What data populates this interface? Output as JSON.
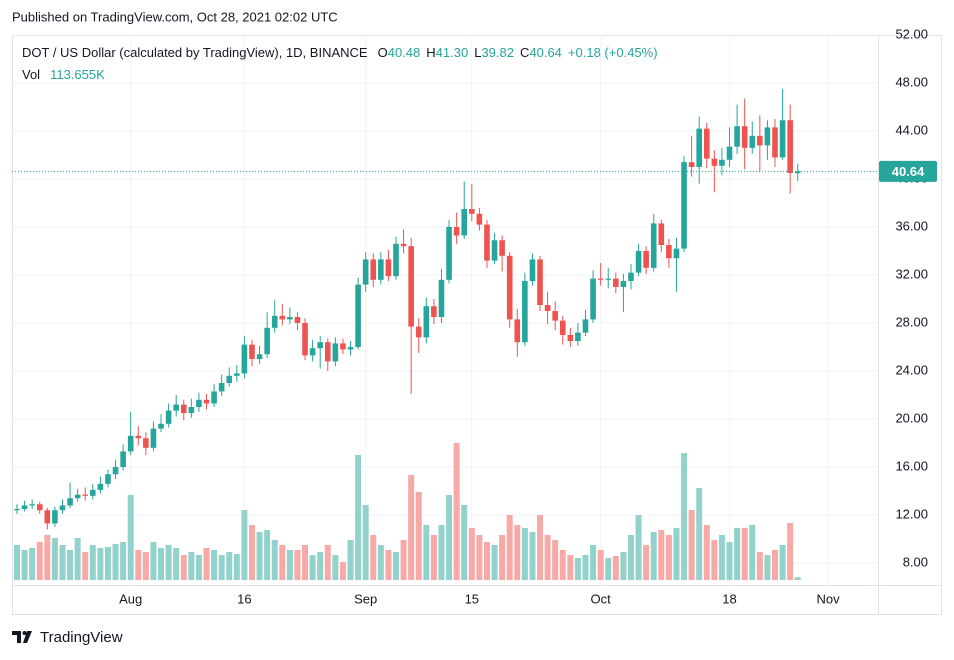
{
  "published": "Published on TradingView.com, Oct 28, 2021 02:02 UTC",
  "brand": "TradingView",
  "chart_data": {
    "type": "candlestick",
    "title": "DOT / US Dollar (calculated by TradingView), 1D, BINANCE",
    "legend_items": [
      {
        "key": "O",
        "value": 40.48
      },
      {
        "key": "H",
        "value": {
          "value": 41.3,
          "label": "41.30"
        }
      },
      {
        "key": "L",
        "value": 39.82
      },
      {
        "key": "C",
        "value": 40.64
      }
    ],
    "change": "+0.18 (+0.45%)",
    "volume_title": "Vol",
    "volume_last": {
      "value": 113655,
      "label": "113.655K"
    },
    "last_price": 40.64,
    "up_color": "#26a69a",
    "down_color": "#ef5350",
    "volume_up_color": "#93d2cc",
    "volume_down_color": "#f7a9a7",
    "grid": true,
    "ylim": [
      6.17,
      52
    ],
    "yticks": [
      {
        "value": 8,
        "label": "8.00"
      },
      {
        "value": 12,
        "label": "12.00"
      },
      {
        "value": 16,
        "label": "16.00"
      },
      {
        "value": 20,
        "label": "20.00"
      },
      {
        "value": 24,
        "label": "24.00"
      },
      {
        "value": 28,
        "label": "28.00"
      },
      {
        "value": 32,
        "label": "32.00"
      },
      {
        "value": 36,
        "label": "36.00"
      },
      {
        "value": 40,
        "label": "40.00"
      },
      {
        "value": 44,
        "label": "44.00"
      },
      {
        "value": 48,
        "label": "48.00"
      },
      {
        "value": 52,
        "label": "52.00"
      }
    ],
    "vlim": [
      0,
      6000000
    ],
    "categories": [
      null,
      null,
      null,
      null,
      null,
      null,
      null,
      null,
      null,
      null,
      null,
      null,
      null,
      null,
      null,
      "Aug",
      null,
      null,
      null,
      null,
      null,
      null,
      null,
      null,
      null,
      null,
      null,
      null,
      null,
      null,
      "16",
      null,
      null,
      null,
      null,
      null,
      null,
      null,
      null,
      null,
      null,
      null,
      null,
      null,
      null,
      null,
      "Sep",
      null,
      null,
      null,
      null,
      null,
      null,
      null,
      null,
      null,
      null,
      null,
      null,
      null,
      "15",
      null,
      null,
      null,
      null,
      null,
      null,
      null,
      null,
      null,
      null,
      null,
      null,
      null,
      null,
      null,
      null,
      "Oct",
      null,
      null,
      null,
      null,
      null,
      null,
      null,
      null,
      null,
      null,
      null,
      null,
      null,
      null,
      null,
      null,
      "18",
      null,
      null,
      null,
      null,
      null,
      null,
      null,
      null,
      null,
      null,
      null,
      null,
      "Nov",
      null,
      null,
      null,
      null,
      null,
      null
    ],
    "open": [
      12.4,
      12.5,
      12.8,
      12.9,
      12.4,
      11.3,
      12.4,
      12.8,
      13.4,
      13.7,
      13.6,
      14.1,
      14.6,
      15.4,
      16.0,
      17.3,
      18.6,
      18.4,
      17.6,
      19.2,
      19.6,
      20.7,
      21.2,
      20.5,
      21.0,
      21.6,
      21.3,
      22.3,
      23.0,
      23.6,
      23.8,
      26.2,
      25.0,
      25.4,
      27.6,
      28.6,
      28.3,
      28.5,
      28.0,
      25.3,
      25.9,
      26.4,
      24.8,
      26.3,
      25.8,
      26.0,
      31.2,
      33.3,
      31.6,
      33.3,
      31.9,
      34.6,
      34.4,
      27.7,
      26.8,
      29.4,
      28.5,
      31.6,
      36.0,
      35.3,
      37.5,
      37.1,
      36.2,
      33.2,
      34.9,
      33.6,
      28.3,
      26.4,
      31.5,
      33.3,
      29.5,
      29.0,
      28.2,
      27.0,
      26.5,
      27.2,
      28.3,
      31.7,
      31.6,
      31.7,
      31.0,
      31.5,
      32.2,
      34.0,
      32.6,
      36.3,
      34.5,
      33.4,
      34.2,
      41.4,
      41.0,
      44.2,
      41.7,
      41.1,
      41.6,
      42.7,
      44.4,
      42.6,
      43.6,
      42.8,
      44.3,
      41.8,
      44.9,
      40.48,
      null,
      null,
      null,
      null,
      null,
      null,
      null,
      null,
      null,
      null
    ],
    "high": [
      12.9,
      13.2,
      13.3,
      13.1,
      12.6,
      12.7,
      13.3,
      14.7,
      14.2,
      14.3,
      14.6,
      15.2,
      15.8,
      16.6,
      17.9,
      20.6,
      19.4,
      18.9,
      19.8,
      20.4,
      21.3,
      22.0,
      21.6,
      21.7,
      22.2,
      22.1,
      22.9,
      23.7,
      24.3,
      24.5,
      26.9,
      26.6,
      26.1,
      28.9,
      29.9,
      29.6,
      29.3,
      28.9,
      28.4,
      26.6,
      26.9,
      26.7,
      26.8,
      26.7,
      26.5,
      31.8,
      33.9,
      33.8,
      33.9,
      34.1,
      35.2,
      35.8,
      35.1,
      28.4,
      30.1,
      30.0,
      32.5,
      36.6,
      37.2,
      39.8,
      39.6,
      37.6,
      36.6,
      35.5,
      35.3,
      33.9,
      29.2,
      32.2,
      33.8,
      33.6,
      30.6,
      29.8,
      28.6,
      27.6,
      28.0,
      29.1,
      32.4,
      33.0,
      32.6,
      32.2,
      32.1,
      32.9,
      34.6,
      34.4,
      37.1,
      36.6,
      35.0,
      35.1,
      41.9,
      43.6,
      45.2,
      44.7,
      42.4,
      42.6,
      44.3,
      46.2,
      46.7,
      44.8,
      45.3,
      44.9,
      45.0,
      47.5,
      46.2,
      41.3,
      null,
      null,
      null,
      null,
      null,
      null,
      null,
      null,
      null,
      null
    ],
    "low": [
      12.1,
      12.3,
      12.5,
      12.1,
      10.8,
      11.0,
      12.1,
      12.6,
      13.1,
      13.2,
      13.3,
      13.8,
      14.3,
      15.0,
      15.7,
      17.0,
      17.8,
      17.0,
      17.3,
      18.9,
      19.3,
      20.2,
      19.9,
      20.1,
      20.6,
      20.8,
      21.0,
      21.9,
      22.7,
      23.1,
      23.4,
      24.4,
      24.6,
      25.1,
      27.2,
      27.8,
      27.9,
      27.4,
      24.9,
      24.8,
      24.2,
      24.0,
      24.4,
      25.4,
      25.3,
      25.8,
      30.6,
      31.0,
      31.2,
      31.5,
      31.6,
      33.8,
      22.1,
      25.5,
      26.3,
      27.9,
      28.0,
      31.3,
      34.6,
      35.0,
      36.5,
      35.7,
      32.6,
      32.9,
      32.3,
      27.6,
      25.2,
      26.1,
      31.1,
      29.0,
      27.9,
      27.4,
      26.2,
      26.0,
      26.1,
      26.9,
      28.0,
      31.1,
      30.9,
      30.5,
      28.9,
      30.8,
      31.9,
      32.1,
      32.3,
      33.9,
      32.6,
      30.6,
      33.9,
      40.2,
      39.6,
      40.9,
      38.9,
      40.3,
      41.0,
      42.1,
      40.8,
      42.1,
      40.6,
      41.6,
      41.0,
      41.6,
      38.8,
      39.82,
      null,
      null,
      null,
      null,
      null,
      null,
      null,
      null,
      null,
      null
    ],
    "close": [
      12.5,
      12.8,
      12.9,
      12.4,
      11.3,
      12.4,
      12.8,
      13.4,
      13.7,
      13.6,
      14.1,
      14.6,
      15.4,
      16.0,
      17.3,
      18.6,
      18.4,
      17.6,
      19.2,
      19.6,
      20.7,
      21.2,
      20.5,
      21.0,
      21.6,
      21.3,
      22.3,
      23.0,
      23.6,
      23.8,
      26.2,
      25.0,
      25.4,
      27.6,
      28.6,
      28.3,
      28.5,
      28.0,
      25.3,
      25.9,
      26.4,
      24.8,
      26.3,
      25.8,
      26.0,
      31.2,
      33.3,
      31.6,
      33.3,
      31.9,
      34.6,
      34.4,
      27.7,
      26.8,
      29.4,
      28.5,
      31.6,
      36.0,
      35.3,
      37.5,
      37.1,
      36.2,
      33.2,
      34.9,
      33.6,
      28.3,
      26.4,
      31.5,
      33.3,
      29.5,
      29.0,
      28.2,
      27.0,
      26.5,
      27.2,
      28.3,
      31.7,
      31.6,
      31.7,
      31.0,
      31.5,
      32.2,
      34.0,
      32.6,
      36.3,
      34.5,
      33.4,
      34.2,
      41.4,
      41.0,
      44.2,
      41.7,
      41.1,
      41.6,
      42.7,
      44.4,
      42.6,
      43.6,
      42.8,
      44.3,
      41.8,
      44.9,
      40.5,
      40.64,
      null,
      null,
      null,
      null,
      null,
      null,
      null,
      null,
      null,
      null
    ],
    "volume": [
      1400000,
      1200000,
      1280000,
      1520000,
      1800000,
      1680000,
      1400000,
      1200000,
      1680000,
      1120000,
      1400000,
      1280000,
      1320000,
      1440000,
      1520000,
      3400000,
      1200000,
      1120000,
      1520000,
      1280000,
      1400000,
      1280000,
      1000000,
      1120000,
      1000000,
      1280000,
      1200000,
      1000000,
      1120000,
      1040000,
      2800000,
      2200000,
      1920000,
      2000000,
      1600000,
      1400000,
      1200000,
      1200000,
      1400000,
      1000000,
      1120000,
      1400000,
      1000000,
      720000,
      1600000,
      5000000,
      3000000,
      1800000,
      1400000,
      1200000,
      1120000,
      1600000,
      4200000,
      3520000,
      2200000,
      1800000,
      2200000,
      3400000,
      5480000,
      3000000,
      2080000,
      1800000,
      1520000,
      1400000,
      1800000,
      2600000,
      2200000,
      2080000,
      1920000,
      2600000,
      1800000,
      1600000,
      1200000,
      1000000,
      880000,
      1000000,
      1400000,
      1200000,
      880000,
      960000,
      1120000,
      1800000,
      2600000,
      1400000,
      1920000,
      2000000,
      1800000,
      2080000,
      5080000,
      2800000,
      3680000,
      2200000,
      1600000,
      1800000,
      1520000,
      2080000,
      2080000,
      2200000,
      1120000,
      1000000,
      1200000,
      1400000,
      2280000,
      113655,
      null,
      null,
      null,
      null,
      null,
      null,
      null,
      null,
      null,
      null
    ]
  }
}
